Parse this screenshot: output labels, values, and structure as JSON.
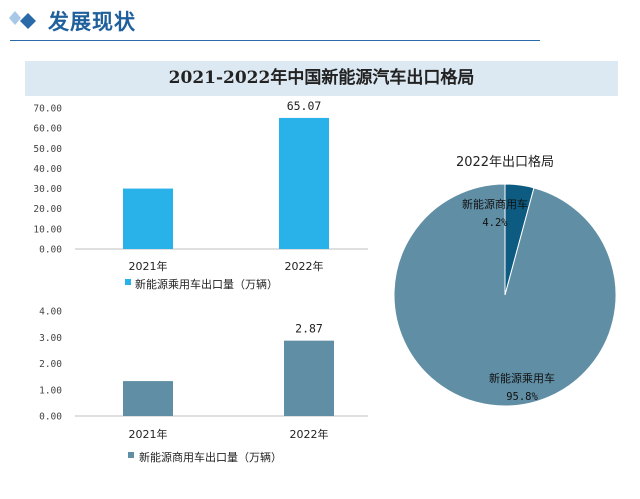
{
  "header": {
    "title": "发展现状"
  },
  "banner": {
    "title": "2021-2022年中国新能源汽车出口格局"
  },
  "colors": {
    "passenger": "#29b2ea",
    "commercial": "#5f8ea5",
    "pie_major": "#5f8ea5",
    "pie_minor": "#0d5b80",
    "header": "#1f5f9c"
  },
  "chart_data": [
    {
      "type": "bar",
      "categories": [
        "2021年",
        "2022年"
      ],
      "series": [
        {
          "name": "新能源乘用车出口量（万辆）",
          "values": [
            30.0,
            65.07
          ]
        }
      ],
      "data_labels": [
        "",
        "65.07"
      ],
      "yticks": [
        "0.00",
        "10.00",
        "20.00",
        "30.00",
        "40.00",
        "50.00",
        "60.00",
        "70.00"
      ],
      "ylim": [
        0,
        70
      ]
    },
    {
      "type": "bar",
      "categories": [
        "2021年",
        "2022年"
      ],
      "series": [
        {
          "name": "新能源商用车出口量（万辆）",
          "values": [
            1.33,
            2.87
          ]
        }
      ],
      "data_labels": [
        "",
        "2.87"
      ],
      "yticks": [
        "0.00",
        "1.00",
        "2.00",
        "3.00",
        "4.00"
      ],
      "ylim": [
        0,
        4
      ]
    },
    {
      "type": "pie",
      "title": "2022年出口格局",
      "slices": [
        {
          "label": "新能源商用车",
          "pct_label": "4.2%",
          "value": 4.2
        },
        {
          "label": "新能源乘用车",
          "pct_label": "95.8%",
          "value": 95.8
        }
      ]
    }
  ]
}
